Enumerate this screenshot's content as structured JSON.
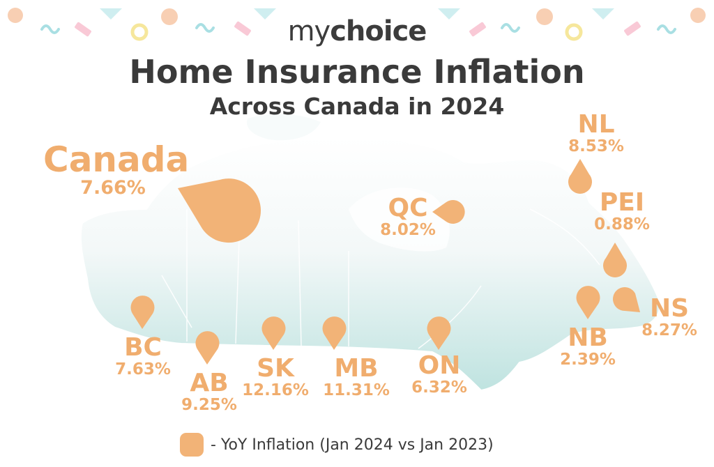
{
  "logo": {
    "my": "my",
    "choice": "choice"
  },
  "title": "Home Insurance Inflation",
  "subtitle": "Across Canada in 2024",
  "national": {
    "code": "Canada",
    "value": "7.66%"
  },
  "regions": {
    "bc": {
      "code": "BC",
      "value": "7.63%"
    },
    "ab": {
      "code": "AB",
      "value": "9.25%"
    },
    "sk": {
      "code": "SK",
      "value": "12.16%"
    },
    "mb": {
      "code": "MB",
      "value": "11.31%"
    },
    "on": {
      "code": "ON",
      "value": "6.32%"
    },
    "qc": {
      "code": "QC",
      "value": "8.02%"
    },
    "nl": {
      "code": "NL",
      "value": "8.53%"
    },
    "pei": {
      "code": "PEI",
      "value": "0.88%"
    },
    "nb": {
      "code": "NB",
      "value": "2.39%"
    },
    "ns": {
      "code": "NS",
      "value": "8.27%"
    }
  },
  "legend": {
    "label": "- YoY Inflation (Jan 2024 vs Jan 2023)"
  },
  "colors": {
    "marker": "#f2b377",
    "label": "#f0ad6e",
    "text": "#3a3a3a",
    "map_top": "#ffffff",
    "map_bottom": "#bfe3e0"
  }
}
